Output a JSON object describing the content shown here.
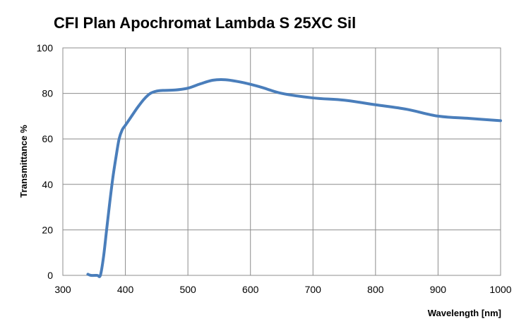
{
  "chart_data": {
    "type": "line",
    "title": "CFI Plan Apochromat  Lambda S 25XC Sil",
    "xlabel": "Wavelength [nm]",
    "ylabel": "Transmittance %",
    "xlim": [
      300,
      1000
    ],
    "ylim": [
      0,
      100
    ],
    "xticks": [
      "300",
      "400",
      "500",
      "600",
      "700",
      "800",
      "900",
      "1000"
    ],
    "yticks": [
      "0",
      "20",
      "40",
      "60",
      "80",
      "100"
    ],
    "grid": true,
    "series_color": "#4a7ebb",
    "series": [
      {
        "x": [
          340,
          345,
          355,
          360,
          365,
          370,
          375,
          380,
          385,
          390,
          395,
          400,
          410,
          420,
          430,
          440,
          450,
          460,
          480,
          500,
          520,
          540,
          560,
          580,
          600,
          620,
          650,
          700,
          750,
          800,
          850,
          900,
          950,
          1000
        ],
        "y": [
          0.5,
          0,
          0,
          0,
          8,
          20,
          32,
          43,
          52,
          60,
          64,
          66,
          70,
          74,
          77.5,
          80,
          81,
          81.3,
          81.5,
          82.3,
          84.2,
          85.8,
          86,
          85.2,
          84,
          82.5,
          80,
          78,
          77,
          75,
          73,
          70,
          69,
          68
        ]
      }
    ]
  }
}
